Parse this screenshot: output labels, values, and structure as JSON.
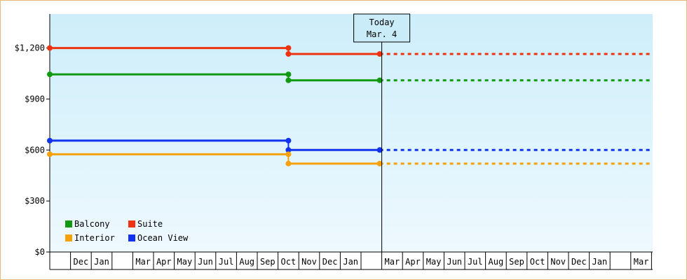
{
  "chart_data": {
    "type": "line",
    "title": "",
    "xlabel": "",
    "ylabel": "",
    "ylim": [
      0,
      1400
    ],
    "y_ticks": [
      {
        "value": 0,
        "label": "$0"
      },
      {
        "value": 300,
        "label": "$300"
      },
      {
        "value": 600,
        "label": "$600"
      },
      {
        "value": 900,
        "label": "$900"
      },
      {
        "value": 1200,
        "label": "$1,200"
      }
    ],
    "x_month_labels": [
      "",
      "Dec",
      "Jan",
      "",
      "Mar",
      "Apr",
      "May",
      "Jun",
      "Jul",
      "Aug",
      "Sep",
      "Oct",
      "Nov",
      "Dec",
      "Jan",
      "",
      "Mar",
      "Apr",
      "May",
      "Jun",
      "Jul",
      "Aug",
      "Sep",
      "Oct",
      "Nov",
      "Dec",
      "Jan",
      "",
      "Mar",
      ""
    ],
    "today_marker": {
      "line1": "Today",
      "line2": "Mar. 4",
      "x_month_index": 16
    },
    "legend": {
      "placement": "bottom-left",
      "items": [
        {
          "label": "Balcony",
          "color": "#119911"
        },
        {
          "label": "Suite",
          "color": "#ee3311"
        },
        {
          "label": "Interior",
          "color": "#f5a20a"
        },
        {
          "label": "Ocean View",
          "color": "#1133ee"
        }
      ]
    },
    "series": [
      {
        "name": "Suite",
        "color": "#ee3311",
        "segments": [
          {
            "x_start": 0,
            "x_end": 11.5,
            "value": 1200
          },
          {
            "x_start": 11.5,
            "x_end": 15.9,
            "value": 1165
          }
        ],
        "projection": {
          "x_start": 15.9,
          "x_end": 29,
          "value": 1165
        }
      },
      {
        "name": "Balcony",
        "color": "#119911",
        "segments": [
          {
            "x_start": 0,
            "x_end": 11.5,
            "value": 1045
          },
          {
            "x_start": 11.5,
            "x_end": 15.9,
            "value": 1010
          }
        ],
        "projection": {
          "x_start": 15.9,
          "x_end": 29,
          "value": 1010
        }
      },
      {
        "name": "Ocean View",
        "color": "#1133ee",
        "segments": [
          {
            "x_start": 0,
            "x_end": 11.5,
            "value": 655
          },
          {
            "x_start": 11.5,
            "x_end": 15.9,
            "value": 600
          }
        ],
        "projection": {
          "x_start": 15.9,
          "x_end": 29,
          "value": 600
        }
      },
      {
        "name": "Interior",
        "color": "#f5a20a",
        "segments": [
          {
            "x_start": 0,
            "x_end": 11.5,
            "value": 575
          },
          {
            "x_start": 11.5,
            "x_end": 15.9,
            "value": 520
          }
        ],
        "projection": {
          "x_start": 15.9,
          "x_end": 29,
          "value": 520
        }
      }
    ],
    "grid": false
  }
}
